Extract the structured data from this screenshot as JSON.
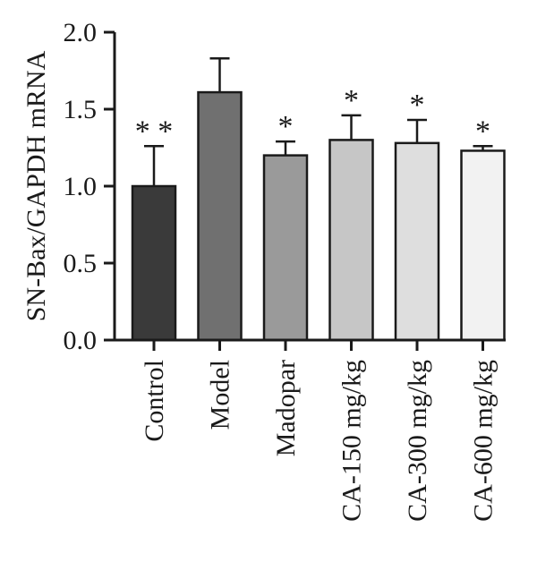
{
  "chart_data": {
    "type": "bar",
    "title": "",
    "xlabel": "",
    "ylabel": "SN-Bax/GAPDH mRNA",
    "ylim": [
      0,
      2.0
    ],
    "yticks": [
      0.0,
      0.5,
      1.0,
      1.5,
      2.0
    ],
    "ytick_labels": [
      "0.0",
      "0.5",
      "1.0",
      "1.5",
      "2.0"
    ],
    "categories": [
      "Control",
      "Model",
      "Madopar",
      "CA-150 mg/kg",
      "CA-300 mg/kg",
      "CA-600 mg/kg"
    ],
    "values": [
      1.0,
      1.61,
      1.2,
      1.3,
      1.28,
      1.23
    ],
    "errors": [
      0.26,
      0.22,
      0.09,
      0.16,
      0.15,
      0.03
    ],
    "significance": [
      "**",
      "",
      "*",
      "*",
      "*",
      "*"
    ],
    "colors": [
      "#3a3a3a",
      "#707070",
      "#9a9a9a",
      "#c6c6c6",
      "#dedede",
      "#f2f2f2"
    ],
    "edge_color": "#1a1a1a",
    "grid": false,
    "legend": "none"
  }
}
